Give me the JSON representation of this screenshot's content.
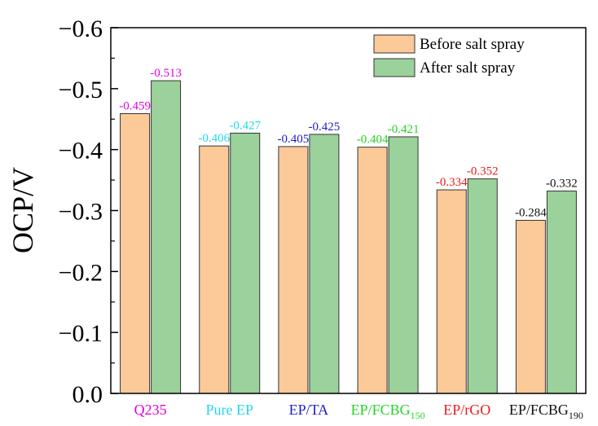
{
  "chart_data": {
    "type": "bar",
    "title": "",
    "xlabel": "",
    "ylabel": "OCP/V",
    "ylim": [
      0,
      -0.6
    ],
    "y_ticks": [
      "0.0",
      "−0.1",
      "−0.2",
      "−0.3",
      "−0.4",
      "−0.5",
      "−0.6"
    ],
    "y_tick_values": [
      0,
      -0.1,
      -0.2,
      -0.3,
      -0.4,
      -0.5,
      -0.6
    ],
    "grid": false,
    "legend_position": "top-right",
    "categories": [
      {
        "main": "Q235",
        "sub": "",
        "color": "#e000e0"
      },
      {
        "main": "Pure EP",
        "sub": "",
        "color": "#22d8e8"
      },
      {
        "main": "EP/TA",
        "sub": "",
        "color": "#1e1ec8"
      },
      {
        "main": "EP/FCBG",
        "sub": "150",
        "color": "#22d422"
      },
      {
        "main": "EP/rGO",
        "sub": "",
        "color": "#e81c1c"
      },
      {
        "main": "EP/FCBG",
        "sub": "190",
        "color": "#111111"
      }
    ],
    "series": [
      {
        "name": "Before salt spray",
        "color": "#fcc999",
        "values": [
          -0.459,
          -0.406,
          -0.405,
          -0.404,
          -0.334,
          -0.284
        ],
        "labels": [
          "-0.459",
          "-0.406",
          "-0.405",
          "-0.404",
          "-0.334",
          "-0.284"
        ]
      },
      {
        "name": "After salt spray",
        "color": "#9bd19b",
        "values": [
          -0.513,
          -0.427,
          -0.425,
          -0.421,
          -0.352,
          -0.332
        ],
        "labels": [
          "-0.513",
          "-0.427",
          "-0.425",
          "-0.421",
          "-0.352",
          "-0.332"
        ]
      }
    ]
  }
}
